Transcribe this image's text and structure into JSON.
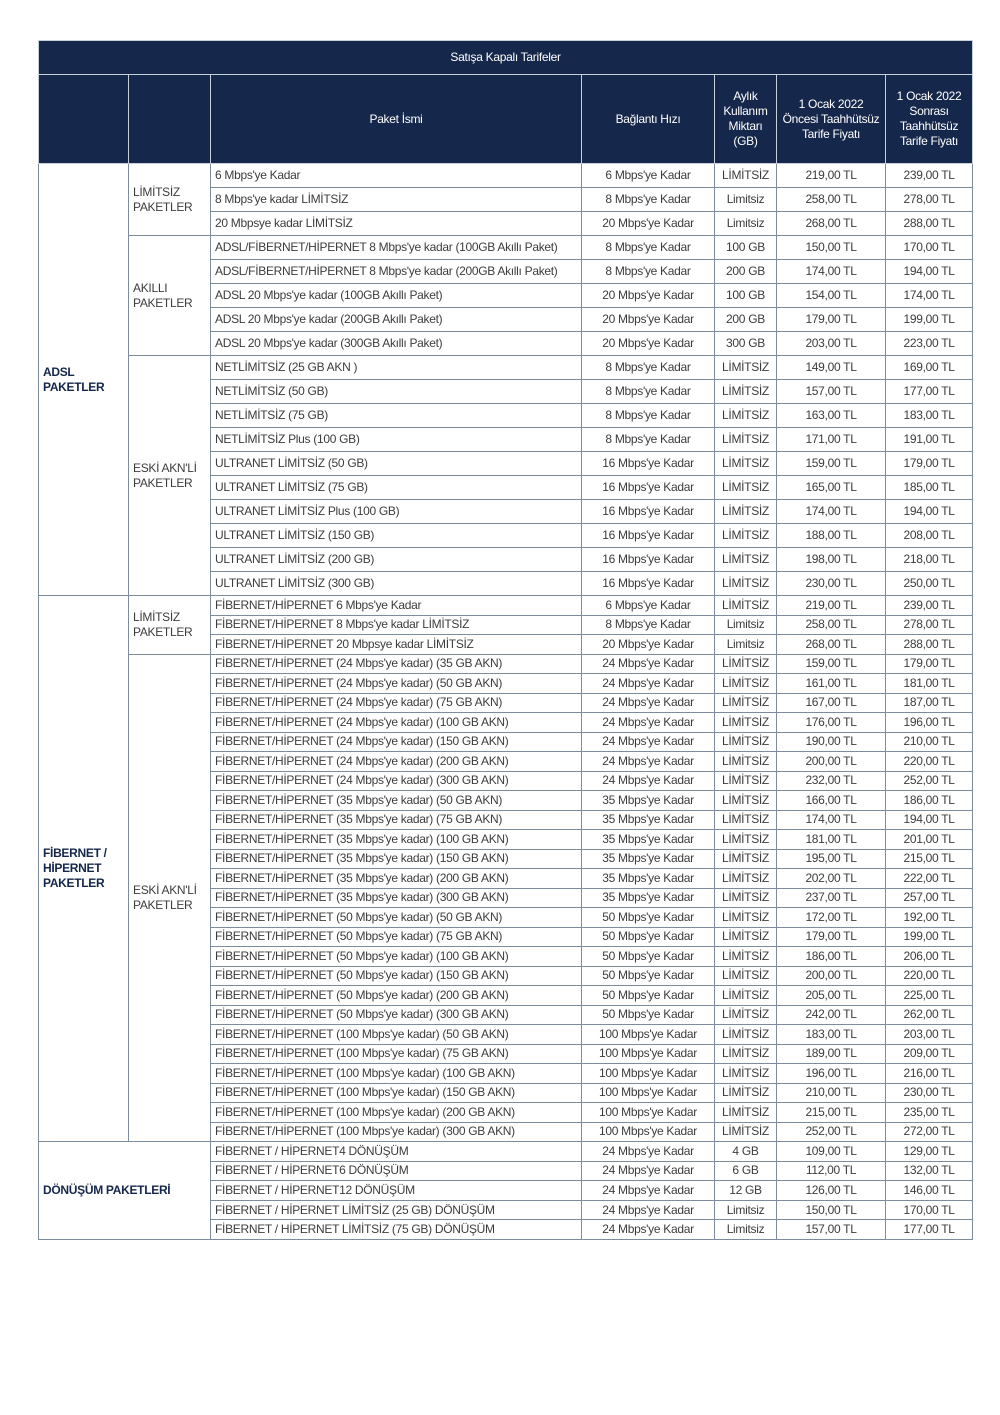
{
  "title": "Satışa Kapalı Tarifeler",
  "headers": [
    "",
    "",
    "Paket İsmi",
    "Bağlantı Hızı",
    "Aylık Kullanım Miktarı (GB)",
    "1 Ocak 2022 Öncesi Taahhütsüz Tarife Fiyatı",
    "1 Ocak 2022 Sonrası Taahhütsüz Tarife Fiyatı"
  ],
  "colors": {
    "header_bg": "#15274a",
    "group_text": "#15274a"
  },
  "sections": [
    {
      "key": "adsl",
      "group": "ADSL PAKETLER",
      "subgroups": [
        {
          "name": "LİMİTSİZ PAKETLER",
          "rows": [
            [
              "6 Mbps'ye Kadar",
              "6 Mbps'ye Kadar",
              "LİMİTSİZ",
              "219,00 TL",
              "239,00 TL"
            ],
            [
              "8 Mbps'ye kadar LİMİTSİZ",
              "8 Mbps'ye Kadar",
              "Limitsiz",
              "258,00 TL",
              "278,00 TL"
            ],
            [
              "20 Mbpsye kadar LİMİTSİZ",
              "20  Mbps'ye Kadar",
              "Limitsiz",
              "268,00 TL",
              "288,00 TL"
            ]
          ]
        },
        {
          "name": "AKILLI PAKETLER",
          "rows": [
            [
              "ADSL/FİBERNET/HİPERNET 8 Mbps'ye kadar (100GB Akıllı Paket)",
              "8 Mbps'ye Kadar",
              "100 GB",
              "150,00 TL",
              "170,00 TL"
            ],
            [
              "ADSL/FİBERNET/HİPERNET 8 Mbps'ye kadar (200GB Akıllı Paket)",
              "8 Mbps'ye Kadar",
              "200 GB",
              "174,00 TL",
              "194,00 TL"
            ],
            [
              "ADSL 20 Mbps'ye kadar (100GB Akıllı Paket)",
              "20  Mbps'ye Kadar",
              "100 GB",
              "154,00 TL",
              "174,00 TL"
            ],
            [
              "ADSL 20 Mbps'ye kadar (200GB Akıllı Paket)",
              "20  Mbps'ye Kadar",
              "200 GB",
              "179,00 TL",
              "199,00 TL"
            ],
            [
              "ADSL 20 Mbps'ye kadar (300GB Akıllı Paket)",
              "20  Mbps'ye Kadar",
              "300 GB",
              "203,00 TL",
              "223,00 TL"
            ]
          ]
        },
        {
          "name": "ESKİ AKN'Lİ PAKETLER",
          "rows": [
            [
              "NETLİMİTSİZ (25 GB AKN )",
              "8 Mbps'ye Kadar",
              "LİMİTSİZ",
              "149,00 TL",
              "169,00 TL"
            ],
            [
              "NETLİMİTSİZ (50 GB)",
              "8 Mbps'ye Kadar",
              "LİMİTSİZ",
              "157,00 TL",
              "177,00 TL"
            ],
            [
              "NETLİMİTSİZ (75 GB)",
              "8 Mbps'ye Kadar",
              "LİMİTSİZ",
              "163,00 TL",
              "183,00 TL"
            ],
            [
              "NETLİMİTSİZ Plus (100 GB)",
              "8 Mbps'ye Kadar",
              "LİMİTSİZ",
              "171,00 TL",
              "191,00 TL"
            ],
            [
              "ULTRANET LİMİTSİZ (50 GB)",
              "16 Mbps'ye Kadar",
              "LİMİTSİZ",
              "159,00 TL",
              "179,00 TL"
            ],
            [
              "ULTRANET LİMİTSİZ (75 GB)",
              "16 Mbps'ye Kadar",
              "LİMİTSİZ",
              "165,00 TL",
              "185,00 TL"
            ],
            [
              "ULTRANET LİMİTSİZ Plus (100 GB)",
              "16 Mbps'ye Kadar",
              "LİMİTSİZ",
              "174,00 TL",
              "194,00 TL"
            ],
            [
              "ULTRANET LİMİTSİZ (150 GB)",
              "16 Mbps'ye Kadar",
              "LİMİTSİZ",
              "188,00 TL",
              "208,00 TL"
            ],
            [
              "ULTRANET LİMİTSİZ (200 GB)",
              "16 Mbps'ye Kadar",
              "LİMİTSİZ",
              "198,00 TL",
              "218,00 TL"
            ],
            [
              "ULTRANET LİMİTSİZ (300 GB)",
              "16 Mbps'ye Kadar",
              "LİMİTSİZ",
              "230,00 TL",
              "250,00 TL"
            ]
          ]
        }
      ]
    },
    {
      "key": "fiber",
      "group": "FİBERNET / HİPERNET PAKETLER",
      "subgroups": [
        {
          "name": "LİMİTSİZ PAKETLER",
          "rows": [
            [
              "FİBERNET/HİPERNET 6 Mbps'ye Kadar",
              "6 Mbps'ye Kadar",
              "LİMİTSİZ",
              "219,00 TL",
              "239,00 TL"
            ],
            [
              "FİBERNET/HİPERNET  8 Mbps'ye kadar LİMİTSİZ",
              "8 Mbps'ye Kadar",
              "Limitsiz",
              "258,00 TL",
              "278,00 TL"
            ],
            [
              "FİBERNET/HİPERNET  20 Mbpsye kadar LİMİTSİZ",
              "20  Mbps'ye Kadar",
              "Limitsiz",
              "268,00 TL",
              "288,00 TL"
            ]
          ]
        },
        {
          "name": "ESKİ AKN'Lİ PAKETLER",
          "rows": [
            [
              "FİBERNET/HİPERNET (24 Mbps'ye kadar) (35 GB AKN)",
              "24 Mbps'ye Kadar",
              "LİMİTSİZ",
              "159,00 TL",
              "179,00 TL"
            ],
            [
              "FİBERNET/HİPERNET (24 Mbps'ye kadar) (50 GB AKN)",
              "24 Mbps'ye Kadar",
              "LİMİTSİZ",
              "161,00 TL",
              "181,00 TL"
            ],
            [
              "FİBERNET/HİPERNET (24 Mbps'ye kadar) (75 GB AKN)",
              "24 Mbps'ye Kadar",
              "LİMİTSİZ",
              "167,00 TL",
              "187,00 TL"
            ],
            [
              "FİBERNET/HİPERNET (24 Mbps'ye kadar) (100 GB AKN)",
              "24 Mbps'ye Kadar",
              "LİMİTSİZ",
              "176,00 TL",
              "196,00 TL"
            ],
            [
              "FİBERNET/HİPERNET (24 Mbps'ye kadar) (150 GB AKN)",
              "24 Mbps'ye Kadar",
              "LİMİTSİZ",
              "190,00 TL",
              "210,00 TL"
            ],
            [
              "FİBERNET/HİPERNET (24 Mbps'ye kadar) (200 GB AKN)",
              "24 Mbps'ye Kadar",
              "LİMİTSİZ",
              "200,00 TL",
              "220,00 TL"
            ],
            [
              "FİBERNET/HİPERNET (24 Mbps'ye kadar) (300 GB AKN)",
              "24 Mbps'ye Kadar",
              "LİMİTSİZ",
              "232,00 TL",
              "252,00 TL"
            ],
            [
              "FİBERNET/HİPERNET (35 Mbps'ye kadar) (50 GB AKN)",
              "35 Mbps'ye Kadar",
              "LİMİTSİZ",
              "166,00 TL",
              "186,00 TL"
            ],
            [
              "FİBERNET/HİPERNET (35 Mbps'ye kadar) (75 GB AKN)",
              "35 Mbps'ye Kadar",
              "LİMİTSİZ",
              "174,00 TL",
              "194,00 TL"
            ],
            [
              "FİBERNET/HİPERNET (35 Mbps'ye kadar) (100 GB AKN)",
              "35 Mbps'ye Kadar",
              "LİMİTSİZ",
              "181,00 TL",
              "201,00 TL"
            ],
            [
              "FİBERNET/HİPERNET (35 Mbps'ye kadar) (150 GB AKN)",
              "35 Mbps'ye Kadar",
              "LİMİTSİZ",
              "195,00 TL",
              "215,00 TL"
            ],
            [
              "FİBERNET/HİPERNET (35 Mbps'ye kadar) (200 GB AKN)",
              "35 Mbps'ye Kadar",
              "LİMİTSİZ",
              "202,00 TL",
              "222,00 TL"
            ],
            [
              "FİBERNET/HİPERNET (35 Mbps'ye kadar) (300 GB AKN)",
              "35 Mbps'ye Kadar",
              "LİMİTSİZ",
              "237,00 TL",
              "257,00 TL"
            ],
            [
              "FİBERNET/HİPERNET (50 Mbps'ye kadar) (50 GB AKN)",
              "50 Mbps'ye Kadar",
              "LİMİTSİZ",
              "172,00 TL",
              "192,00 TL"
            ],
            [
              "FİBERNET/HİPERNET (50 Mbps'ye kadar) (75 GB AKN)",
              "50 Mbps'ye Kadar",
              "LİMİTSİZ",
              "179,00 TL",
              "199,00 TL"
            ],
            [
              "FİBERNET/HİPERNET (50 Mbps'ye kadar) (100 GB AKN)",
              "50 Mbps'ye Kadar",
              "LİMİTSİZ",
              "186,00 TL",
              "206,00 TL"
            ],
            [
              "FİBERNET/HİPERNET (50 Mbps'ye kadar) (150 GB AKN)",
              "50 Mbps'ye Kadar",
              "LİMİTSİZ",
              "200,00 TL",
              "220,00 TL"
            ],
            [
              "FİBERNET/HİPERNET (50 Mbps'ye kadar) (200 GB AKN)",
              "50 Mbps'ye Kadar",
              "LİMİTSİZ",
              "205,00 TL",
              "225,00 TL"
            ],
            [
              "FİBERNET/HİPERNET (50 Mbps'ye kadar) (300 GB AKN)",
              "50 Mbps'ye Kadar",
              "LİMİTSİZ",
              "242,00 TL",
              "262,00 TL"
            ],
            [
              "FİBERNET/HİPERNET (100 Mbps'ye kadar) (50 GB AKN)",
              "100 Mbps'ye Kadar",
              "LİMİTSİZ",
              "183,00 TL",
              "203,00 TL"
            ],
            [
              "FİBERNET/HİPERNET (100 Mbps'ye kadar) (75 GB AKN)",
              "100 Mbps'ye Kadar",
              "LİMİTSİZ",
              "189,00 TL",
              "209,00 TL"
            ],
            [
              "FİBERNET/HİPERNET (100 Mbps'ye kadar) (100 GB AKN)",
              "100 Mbps'ye Kadar",
              "LİMİTSİZ",
              "196,00 TL",
              "216,00 TL"
            ],
            [
              "FİBERNET/HİPERNET (100 Mbps'ye kadar) (150 GB AKN)",
              "100 Mbps'ye Kadar",
              "LİMİTSİZ",
              "210,00 TL",
              "230,00 TL"
            ],
            [
              "FİBERNET/HİPERNET (100 Mbps'ye kadar) (200 GB AKN)",
              "100 Mbps'ye Kadar",
              "LİMİTSİZ",
              "215,00 TL",
              "235,00 TL"
            ],
            [
              "FİBERNET/HİPERNET (100 Mbps'ye kadar) (300 GB AKN)",
              "100 Mbps'ye Kadar",
              "LİMİTSİZ",
              "252,00 TL",
              "272,00 TL"
            ]
          ]
        }
      ]
    },
    {
      "key": "donusum",
      "group": "DÖNÜŞÜM PAKETLERİ",
      "subgroups": [
        {
          "name": "",
          "rows": [
            [
              "FİBERNET / HİPERNET4 DÖNÜŞÜM",
              "24  Mbps'ye Kadar",
              "4 GB",
              "109,00 TL",
              "129,00 TL"
            ],
            [
              "FİBERNET / HİPERNET6 DÖNÜŞÜM",
              "24  Mbps'ye Kadar",
              "6 GB",
              "112,00 TL",
              "132,00 TL"
            ],
            [
              "FİBERNET / HİPERNET12 DÖNÜŞÜM",
              "24  Mbps'ye Kadar",
              "12 GB",
              "126,00 TL",
              "146,00 TL"
            ],
            [
              "FİBERNET / HİPERNET LİMİTSİZ (25 GB) DÖNÜŞÜM",
              "24  Mbps'ye Kadar",
              "Limitsiz",
              "150,00 TL",
              "170,00 TL"
            ],
            [
              "FİBERNET / HİPERNET LİMİTSİZ (75 GB) DÖNÜŞÜM",
              "24  Mbps'ye Kadar",
              "Limitsiz",
              "157,00 TL",
              "177,00 TL"
            ]
          ]
        }
      ]
    }
  ]
}
